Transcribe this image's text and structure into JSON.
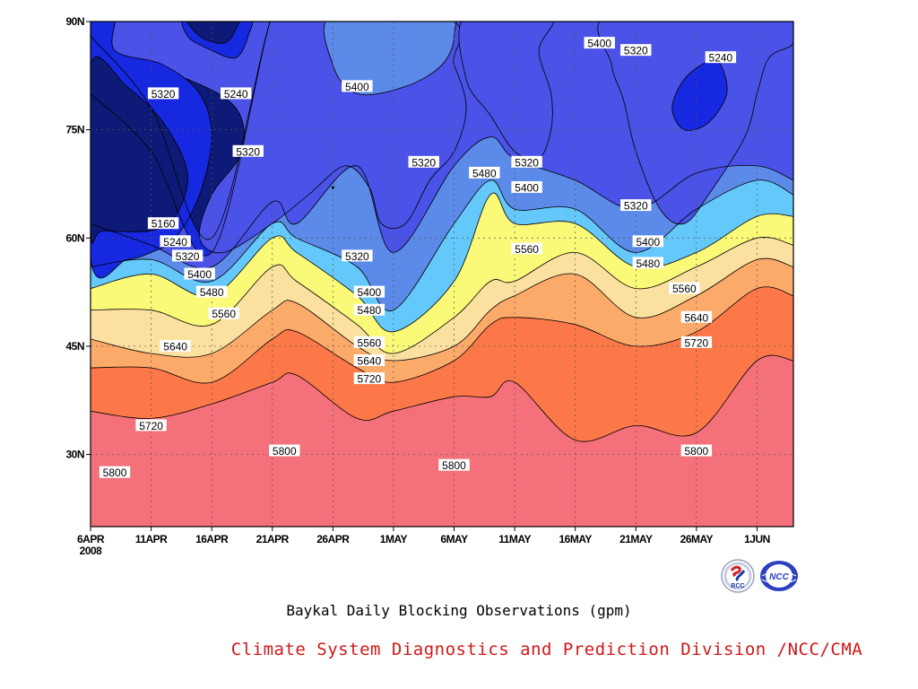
{
  "title": "Baykal Daily Blocking Observations (gpm)",
  "credit": "Climate System Diagnostics and Prediction Division /NCC/CMA",
  "logos": [
    {
      "name": "bcc-logo",
      "text": "BCC",
      "color": "#1a3aa8",
      "accent": "#d02020"
    },
    {
      "name": "ncc-logo",
      "text": "NCC",
      "color": "#2c40c0"
    }
  ],
  "chart_data": {
    "type": "heatmap",
    "x": {
      "start_day": 0,
      "end_day": 58,
      "ticks": [
        {
          "day": 0,
          "label": "6APR",
          "sub": "2008"
        },
        {
          "day": 5,
          "label": "11APR"
        },
        {
          "day": 10,
          "label": "16APR"
        },
        {
          "day": 15,
          "label": "21APR"
        },
        {
          "day": 20,
          "label": "26APR"
        },
        {
          "day": 25,
          "label": "1MAY"
        },
        {
          "day": 30,
          "label": "6MAY"
        },
        {
          "day": 35,
          "label": "11MAY"
        },
        {
          "day": 40,
          "label": "16MAY"
        },
        {
          "day": 45,
          "label": "21MAY"
        },
        {
          "day": 50,
          "label": "26MAY"
        },
        {
          "day": 55,
          "label": "1JUN"
        }
      ]
    },
    "y": {
      "min": 20,
      "max": 90,
      "ticks": [
        {
          "lat": 30,
          "label": "30N"
        },
        {
          "lat": 45,
          "label": "45N"
        },
        {
          "lat": 60,
          "label": "60N"
        },
        {
          "lat": 75,
          "label": "75N"
        },
        {
          "lat": 90,
          "label": "90N"
        }
      ]
    },
    "grid": true,
    "levels": [
      5160,
      5240,
      5320,
      5400,
      5480,
      5560,
      5640,
      5720,
      5800
    ],
    "colors": [
      "#0e1a78",
      "#1628e0",
      "#4a52e8",
      "#5c8ae8",
      "#64c8fa",
      "#fafa78",
      "#fce0a0",
      "#fcaa6a",
      "#fc7848",
      "#f4707a"
    ],
    "fields": [
      {
        "day": 0,
        "lat": [
          88,
          80,
          62,
          56,
          53,
          50,
          46,
          42,
          36
        ]
      },
      {
        "day": 5,
        "lat": [
          78,
          72,
          59,
          57,
          55,
          50,
          44,
          42,
          35
        ]
      },
      {
        "day": 10,
        "lat": [
          60,
          58,
          56,
          54,
          52,
          48,
          44,
          40,
          37
        ]
      },
      {
        "day": 15,
        "lat": [
          91,
          91,
          65,
          62,
          60,
          56,
          50,
          46,
          40
        ]
      },
      {
        "day": 17,
        "lat": [
          91,
          91,
          62,
          60,
          58,
          54,
          51,
          47,
          41
        ]
      },
      {
        "day": 22,
        "lat": [
          91,
          91,
          70,
          56,
          52,
          48,
          45,
          42,
          35
        ]
      },
      {
        "day": 25,
        "lat": [
          91,
          91,
          58,
          50,
          47,
          44,
          43,
          40,
          36
        ]
      },
      {
        "day": 30,
        "lat": [
          91,
          91,
          70,
          62,
          54,
          49,
          45,
          43,
          38
        ]
      },
      {
        "day": 33,
        "lat": [
          91,
          91,
          74,
          68,
          66,
          54,
          50,
          48,
          38
        ]
      },
      {
        "day": 35,
        "lat": [
          91,
          91,
          71,
          64,
          62,
          54,
          52,
          49,
          40
        ]
      },
      {
        "day": 40,
        "lat": [
          91,
          91,
          68,
          64,
          62,
          58,
          55,
          48,
          32
        ]
      },
      {
        "day": 45,
        "lat": [
          91,
          91,
          64,
          58,
          56,
          53,
          49,
          45,
          34
        ]
      },
      {
        "day": 50,
        "lat": [
          91,
          91,
          69,
          64,
          58,
          56,
          52,
          47,
          33
        ]
      },
      {
        "day": 55,
        "lat": [
          91,
          91,
          70,
          68,
          63,
          60,
          57,
          53,
          43
        ]
      },
      {
        "day": 58,
        "lat": [
          91,
          91,
          68,
          66,
          63,
          59,
          56,
          52,
          43
        ]
      }
    ],
    "closed_regions": [
      {
        "level": 5320,
        "pts": [
          [
            2,
            91
          ],
          [
            2,
            85
          ],
          [
            8,
            82
          ],
          [
            12,
            78
          ],
          [
            12.5,
            72
          ],
          [
            10,
            66
          ],
          [
            9,
            60
          ],
          [
            11,
            58
          ],
          [
            15,
            62
          ],
          [
            18,
            66
          ],
          [
            21,
            70
          ],
          [
            23,
            67
          ],
          [
            24,
            62
          ],
          [
            26,
            62
          ],
          [
            28,
            68
          ],
          [
            30,
            72
          ],
          [
            31,
            78
          ],
          [
            30,
            84
          ],
          [
            28,
            91
          ]
        ]
      },
      {
        "level": 5240,
        "pts": [
          [
            2,
            91
          ],
          [
            2,
            86
          ],
          [
            6,
            84
          ],
          [
            9,
            80
          ],
          [
            10,
            74
          ],
          [
            9,
            66
          ],
          [
            7,
            60
          ],
          [
            5,
            58
          ],
          [
            3,
            57
          ],
          [
            0,
            57
          ],
          [
            0,
            91
          ]
        ]
      },
      {
        "level": 5160,
        "pts": [
          [
            0,
            84
          ],
          [
            3,
            81
          ],
          [
            6,
            76
          ],
          [
            8,
            69
          ],
          [
            7,
            63
          ],
          [
            5,
            61
          ],
          [
            1,
            61
          ],
          [
            0,
            61
          ]
        ]
      },
      {
        "level": 5240,
        "pts": [
          [
            8,
            91
          ],
          [
            8,
            88
          ],
          [
            10,
            86
          ],
          [
            12,
            85
          ],
          [
            13,
            88
          ],
          [
            13,
            91
          ]
        ]
      },
      {
        "level": 5160,
        "pts": [
          [
            8,
            91
          ],
          [
            9,
            88
          ],
          [
            11,
            87
          ],
          [
            12,
            89
          ],
          [
            12,
            91
          ]
        ]
      },
      {
        "level": 5400,
        "pts": [
          [
            20,
            91
          ],
          [
            20,
            84
          ],
          [
            22,
            80
          ],
          [
            26,
            81
          ],
          [
            29,
            84
          ],
          [
            30,
            88
          ],
          [
            29,
            91
          ]
        ]
      },
      {
        "level": 5320,
        "pts": [
          [
            31,
            91
          ],
          [
            31,
            82
          ],
          [
            33,
            77
          ],
          [
            35,
            72
          ],
          [
            37,
            71
          ],
          [
            38,
            75
          ],
          [
            38,
            80
          ],
          [
            37,
            86
          ],
          [
            38,
            91
          ]
        ]
      },
      {
        "level": 5320,
        "pts": [
          [
            43,
            91
          ],
          [
            43,
            84
          ],
          [
            44,
            79
          ],
          [
            45,
            72
          ],
          [
            47,
            64
          ],
          [
            49,
            62
          ],
          [
            51,
            66
          ],
          [
            54,
            74
          ],
          [
            55,
            80
          ],
          [
            56,
            85
          ],
          [
            58,
            87
          ],
          [
            58,
            91
          ]
        ]
      },
      {
        "level": 5240,
        "pts": [
          [
            48,
            78
          ],
          [
            49,
            82
          ],
          [
            51,
            84.5
          ],
          [
            52,
            84
          ],
          [
            52.5,
            80
          ],
          [
            51,
            76
          ],
          [
            49,
            75
          ]
        ]
      }
    ],
    "contour_labels": [
      {
        "value": "5320",
        "day": 6,
        "lat": 80
      },
      {
        "value": "5240",
        "day": 12,
        "lat": 80
      },
      {
        "value": "5400",
        "day": 22,
        "lat": 81
      },
      {
        "value": "5400",
        "day": 42,
        "lat": 87
      },
      {
        "value": "5320",
        "day": 45,
        "lat": 86
      },
      {
        "value": "5240",
        "day": 52,
        "lat": 85
      },
      {
        "value": "5320",
        "day": 13,
        "lat": 72
      },
      {
        "value": "5320",
        "day": 27.5,
        "lat": 70.5
      },
      {
        "value": "5320",
        "day": 36,
        "lat": 70.5
      },
      {
        "value": "5480",
        "day": 32.5,
        "lat": 69
      },
      {
        "value": "5400",
        "day": 36,
        "lat": 67
      },
      {
        "value": "5320",
        "day": 45,
        "lat": 64.5
      },
      {
        "value": "5160",
        "day": 6,
        "lat": 62
      },
      {
        "value": "5240",
        "day": 7,
        "lat": 59.5
      },
      {
        "value": "5320",
        "day": 8,
        "lat": 57.5
      },
      {
        "value": "5400",
        "day": 9,
        "lat": 55
      },
      {
        "value": "5480",
        "day": 10,
        "lat": 52.5
      },
      {
        "value": "5560",
        "day": 11,
        "lat": 49.5
      },
      {
        "value": "5640",
        "day": 7,
        "lat": 45
      },
      {
        "value": "5320",
        "day": 22,
        "lat": 57.5
      },
      {
        "value": "5400",
        "day": 23,
        "lat": 52.5
      },
      {
        "value": "5480",
        "day": 23,
        "lat": 50
      },
      {
        "value": "5560",
        "day": 23,
        "lat": 45.5
      },
      {
        "value": "5640",
        "day": 23,
        "lat": 43
      },
      {
        "value": "5720",
        "day": 23,
        "lat": 40.5
      },
      {
        "value": "5560",
        "day": 36,
        "lat": 58.5
      },
      {
        "value": "5400",
        "day": 46,
        "lat": 59.5
      },
      {
        "value": "5480",
        "day": 46,
        "lat": 56.5
      },
      {
        "value": "5560",
        "day": 49,
        "lat": 53
      },
      {
        "value": "5640",
        "day": 50,
        "lat": 49
      },
      {
        "value": "5720",
        "day": 50,
        "lat": 45.5
      },
      {
        "value": "5720",
        "day": 5,
        "lat": 34
      },
      {
        "value": "5800",
        "day": 16,
        "lat": 30.5
      },
      {
        "value": "5800",
        "day": 30,
        "lat": 28.5
      },
      {
        "value": "5800",
        "day": 50,
        "lat": 30.5
      },
      {
        "value": "5800",
        "day": 2,
        "lat": 27.5
      }
    ],
    "markers": [
      {
        "day": 20,
        "lat": 67
      }
    ]
  }
}
